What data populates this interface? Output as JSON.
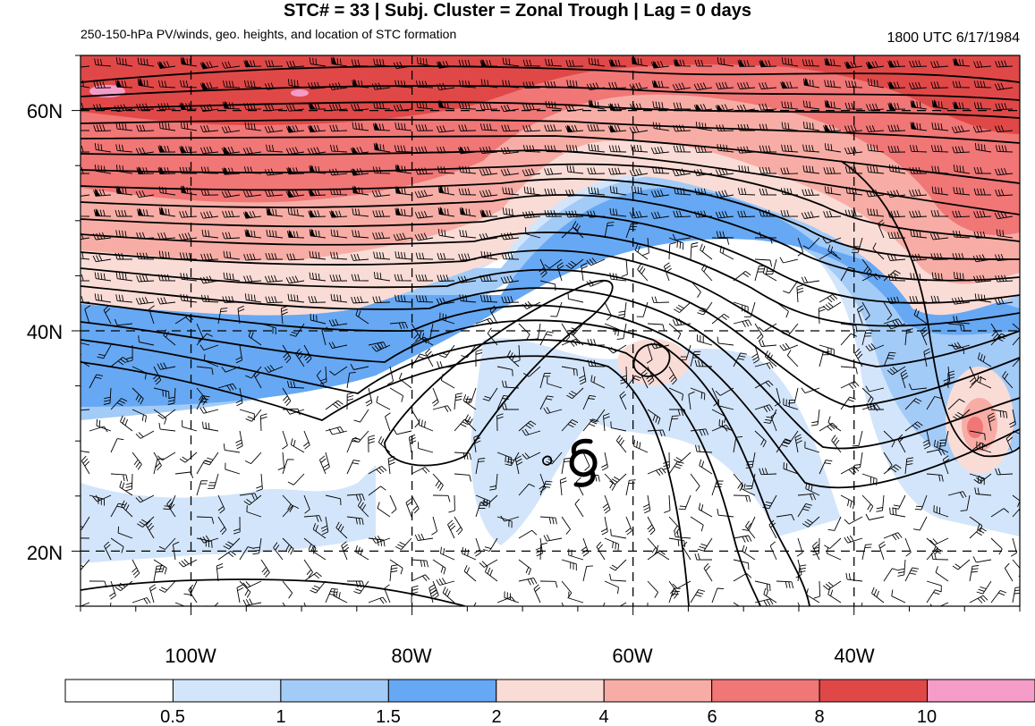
{
  "header": {
    "title": "STC# = 33 | Subj. Cluster = Zonal Trough | Lag = 0 days",
    "subtitle": "250-150-hPa PV/winds, geo. heights, and location of STC formation",
    "timestamp": "1800 UTC  6/17/1984"
  },
  "map": {
    "lat_range": [
      15,
      65
    ],
    "lon_range": [
      -110,
      -25
    ],
    "lat_ticks": [
      {
        "value": 20,
        "label": "20N"
      },
      {
        "value": 40,
        "label": "40N"
      },
      {
        "value": 60,
        "label": "60N"
      }
    ],
    "lon_ticks": [
      {
        "value": -100,
        "label": "100W"
      },
      {
        "value": -80,
        "label": "80W"
      },
      {
        "value": -60,
        "label": "60W"
      },
      {
        "value": -40,
        "label": "40W"
      }
    ],
    "storm_marker": {
      "lon": -64.5,
      "lat": 28
    },
    "colors": {
      "pv_0.5_1": "#d3e5fb",
      "pv_1_1.5": "#a3cbf7",
      "pv_1.5_2": "#66a8f3",
      "pv_2_4": "#fadcd6",
      "pv_4_6": "#f7ada5",
      "pv_6_8": "#f17676",
      "pv_8_10": "#e04848",
      "pv_10_plus": "#f59cc8"
    }
  },
  "colorbar": {
    "colors": [
      "#ffffff",
      "#d3e5fb",
      "#a3cbf7",
      "#66a8f3",
      "#fadcd6",
      "#f7ada5",
      "#f17676",
      "#e04848",
      "#f59cc8"
    ],
    "labels": [
      "0.5",
      "1",
      "1.5",
      "2",
      "4",
      "6",
      "8",
      "10"
    ]
  }
}
